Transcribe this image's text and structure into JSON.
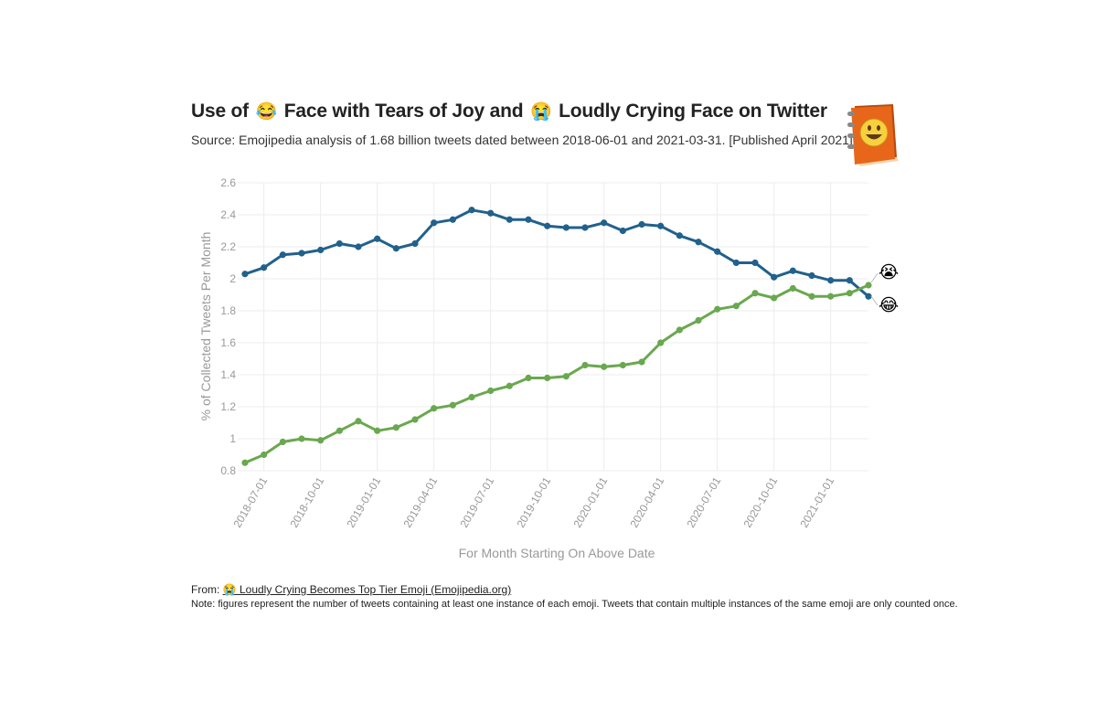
{
  "header": {
    "title_part1": "Use of",
    "emoji_joy": "😂",
    "title_part2": "Face with Tears of Joy and",
    "emoji_crying": "😭",
    "title_part3": "Loudly Crying Face on Twitter",
    "subtitle": "Source: Emojipedia analysis of 1.68 billion tweets dated between 2018-06-01 and 2021-03-31. [Published April 2021]",
    "logo_icon": "emojipedia-book-icon"
  },
  "footer": {
    "from_label": "From:",
    "link_emoji": "😭",
    "link_text": "Loudly Crying Becomes Top Tier Emoji (Emojipedia.org)",
    "note": "Note: figures represent the number of tweets containing at least one instance of each emoji. Tweets that contain multiple instances of the same emoji are only counted once."
  },
  "colors": {
    "joy": "#21618c",
    "crying": "#6aa84f",
    "grid": "#ececec",
    "axis_text": "#999999"
  },
  "chart_data": {
    "type": "line",
    "title": "Use of 😂 Face with Tears of Joy and 😭 Loudly Crying Face on Twitter",
    "xlabel": "For Month Starting On Above Date",
    "ylabel": "% of Collected Tweets Per Month",
    "ylim": [
      0.8,
      2.6
    ],
    "yticks": [
      0.8,
      1,
      1.2,
      1.4,
      1.6,
      1.8,
      2,
      2.2,
      2.4,
      2.6
    ],
    "ytick_labels": [
      "0.8",
      "1",
      "1.2",
      "1.4",
      "1.6",
      "1.8",
      "2",
      "2.2",
      "2.4",
      "2.6"
    ],
    "x": [
      "2018-06-01",
      "2018-07-01",
      "2018-08-01",
      "2018-09-01",
      "2018-10-01",
      "2018-11-01",
      "2018-12-01",
      "2019-01-01",
      "2019-02-01",
      "2019-03-01",
      "2019-04-01",
      "2019-05-01",
      "2019-06-01",
      "2019-07-01",
      "2019-08-01",
      "2019-09-01",
      "2019-10-01",
      "2019-11-01",
      "2019-12-01",
      "2020-01-01",
      "2020-02-01",
      "2020-03-01",
      "2020-04-01",
      "2020-05-01",
      "2020-06-01",
      "2020-07-01",
      "2020-08-01",
      "2020-09-01",
      "2020-10-01",
      "2020-11-01",
      "2020-12-01",
      "2021-01-01",
      "2021-02-01",
      "2021-03-01"
    ],
    "xtick_labels": [
      "2018-07-01",
      "2018-10-01",
      "2019-01-01",
      "2019-04-01",
      "2019-07-01",
      "2019-10-01",
      "2020-01-01",
      "2020-04-01",
      "2020-07-01",
      "2020-10-01",
      "2021-01-01"
    ],
    "grid": true,
    "series": [
      {
        "name": "Face with Tears of Joy",
        "emoji": "😂",
        "color": "#21618c",
        "values": [
          2.03,
          2.07,
          2.15,
          2.16,
          2.18,
          2.22,
          2.2,
          2.25,
          2.19,
          2.22,
          2.35,
          2.37,
          2.43,
          2.41,
          2.37,
          2.37,
          2.33,
          2.32,
          2.32,
          2.35,
          2.3,
          2.34,
          2.33,
          2.27,
          2.23,
          2.17,
          2.1,
          2.1,
          2.01,
          2.05,
          2.02,
          1.99,
          1.99,
          1.89
        ]
      },
      {
        "name": "Loudly Crying Face",
        "emoji": "😭",
        "color": "#6aa84f",
        "values": [
          0.85,
          0.9,
          0.98,
          1.0,
          0.99,
          1.05,
          1.11,
          1.05,
          1.07,
          1.12,
          1.19,
          1.21,
          1.26,
          1.3,
          1.33,
          1.38,
          1.38,
          1.39,
          1.46,
          1.45,
          1.46,
          1.48,
          1.6,
          1.68,
          1.74,
          1.81,
          1.83,
          1.91,
          1.88,
          1.94,
          1.89,
          1.89,
          1.91,
          1.96
        ]
      }
    ]
  }
}
